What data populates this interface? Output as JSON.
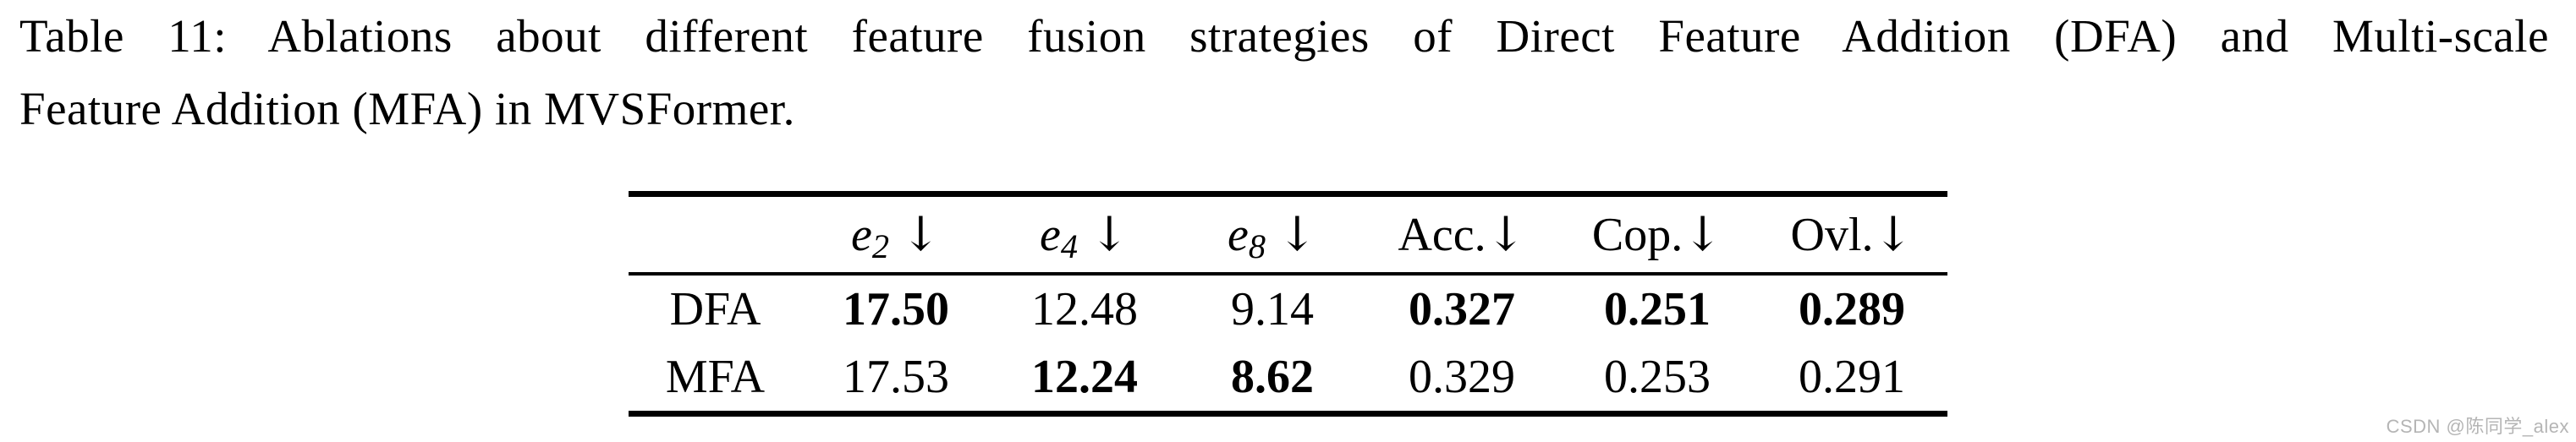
{
  "caption": {
    "line1": "Table 11: Ablations about different feature fusion strategies of Direct Feature Addition (DFA) and Multi-scale",
    "line2": "Feature Addition (MFA) in MVSFormer."
  },
  "table": {
    "header": [
      {
        "type": "empty",
        "text": ""
      },
      {
        "type": "math",
        "base": "e",
        "sub": "2",
        "arrow": "↓",
        "space_before_arrow": true
      },
      {
        "type": "math",
        "base": "e",
        "sub": "4",
        "arrow": "↓",
        "space_before_arrow": true
      },
      {
        "type": "math",
        "base": "e",
        "sub": "8",
        "arrow": "↓",
        "space_before_arrow": true
      },
      {
        "type": "text",
        "text": "Acc.",
        "arrow": "↓",
        "space_before_arrow": false
      },
      {
        "type": "text",
        "text": "Cop.",
        "arrow": "↓",
        "space_before_arrow": false
      },
      {
        "type": "text",
        "text": "Ovl.",
        "arrow": "↓",
        "space_before_arrow": false
      }
    ],
    "rows": [
      {
        "label": "DFA",
        "cells": [
          {
            "value": "17.50",
            "bold": true
          },
          {
            "value": "12.48",
            "bold": false
          },
          {
            "value": "9.14",
            "bold": false
          },
          {
            "value": "0.327",
            "bold": true
          },
          {
            "value": "0.251",
            "bold": true
          },
          {
            "value": "0.289",
            "bold": true
          }
        ]
      },
      {
        "label": "MFA",
        "cells": [
          {
            "value": "17.53",
            "bold": false
          },
          {
            "value": "12.24",
            "bold": true
          },
          {
            "value": "8.62",
            "bold": true
          },
          {
            "value": "0.329",
            "bold": false
          },
          {
            "value": "0.253",
            "bold": false
          },
          {
            "value": "0.291",
            "bold": false
          }
        ]
      }
    ]
  },
  "watermark": {
    "text": "CSDN @陈同学_alex"
  },
  "colors": {
    "background": "#ffffff",
    "text": "#000000",
    "rule": "#000000",
    "watermark_text": "#b5b5b5"
  }
}
